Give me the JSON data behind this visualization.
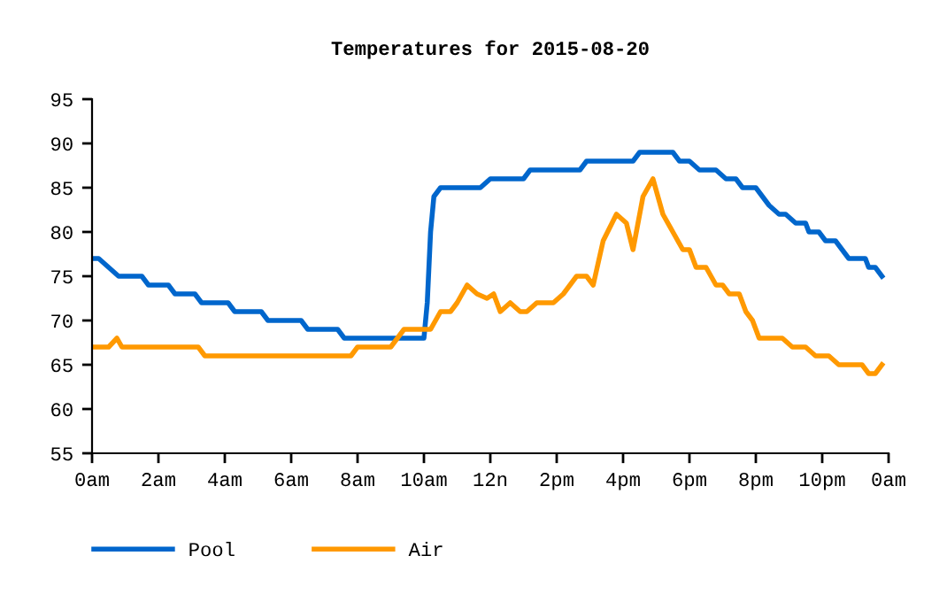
{
  "chart_data": {
    "type": "line",
    "title": "Temperatures for 2015-08-20",
    "xlim": [
      "2015-08-20T00:00",
      "2015-08-21T00:00"
    ],
    "ylim": [
      55,
      95
    ],
    "xticks": [
      {
        "value": "2015-08-20T00:00",
        "label": "0am"
      },
      {
        "value": "2015-08-20T02:00",
        "label": "2am"
      },
      {
        "value": "2015-08-20T04:00",
        "label": "4am"
      },
      {
        "value": "2015-08-20T06:00",
        "label": "6am"
      },
      {
        "value": "2015-08-20T08:00",
        "label": "8am"
      },
      {
        "value": "2015-08-20T10:00",
        "label": "10am"
      },
      {
        "value": "2015-08-20T12:00",
        "label": "12n"
      },
      {
        "value": "2015-08-20T14:00",
        "label": "2pm"
      },
      {
        "value": "2015-08-20T16:00",
        "label": "4pm"
      },
      {
        "value": "2015-08-20T18:00",
        "label": "6pm"
      },
      {
        "value": "2015-08-20T20:00",
        "label": "8pm"
      },
      {
        "value": "2015-08-20T22:00",
        "label": "10pm"
      },
      {
        "value": "2015-08-21T00:00",
        "label": "0am"
      }
    ],
    "yticks": [
      55,
      60,
      65,
      70,
      75,
      80,
      85,
      90,
      95
    ],
    "grid": false,
    "legend": "bottom",
    "marker": "none",
    "line_style": "solid",
    "series": [
      {
        "name": "Pool",
        "color": "#0066cc",
        "x": [
          "2015-08-20T00:00",
          "2015-08-20T00:12",
          "2015-08-20T00:30",
          "2015-08-20T00:48",
          "2015-08-20T01:30",
          "2015-08-20T01:42",
          "2015-08-20T02:18",
          "2015-08-20T02:30",
          "2015-08-20T03:06",
          "2015-08-20T03:18",
          "2015-08-20T04:06",
          "2015-08-20T04:18",
          "2015-08-20T05:06",
          "2015-08-20T05:18",
          "2015-08-20T06:18",
          "2015-08-20T06:30",
          "2015-08-20T07:24",
          "2015-08-20T07:36",
          "2015-08-20T10:00",
          "2015-08-20T10:06",
          "2015-08-20T10:12",
          "2015-08-20T10:18",
          "2015-08-20T10:30",
          "2015-08-20T11:42",
          "2015-08-20T12:00",
          "2015-08-20T13:00",
          "2015-08-20T13:12",
          "2015-08-20T14:42",
          "2015-08-20T14:54",
          "2015-08-20T16:18",
          "2015-08-20T16:30",
          "2015-08-20T17:30",
          "2015-08-20T17:42",
          "2015-08-20T18:00",
          "2015-08-20T18:18",
          "2015-08-20T18:48",
          "2015-08-20T19:06",
          "2015-08-20T19:24",
          "2015-08-20T19:36",
          "2015-08-20T20:00",
          "2015-08-20T20:12",
          "2015-08-20T20:24",
          "2015-08-20T20:42",
          "2015-08-20T20:54",
          "2015-08-20T21:12",
          "2015-08-20T21:30",
          "2015-08-20T21:36",
          "2015-08-20T21:54",
          "2015-08-20T22:06",
          "2015-08-20T22:24",
          "2015-08-20T22:36",
          "2015-08-20T22:48",
          "2015-08-20T23:18",
          "2015-08-20T23:24",
          "2015-08-20T23:36",
          "2015-08-20T23:48"
        ],
        "values": [
          77,
          77,
          76,
          75,
          75,
          74,
          74,
          73,
          73,
          72,
          72,
          71,
          71,
          70,
          70,
          69,
          69,
          68,
          68,
          72,
          80,
          84,
          85,
          85,
          86,
          86,
          87,
          87,
          88,
          88,
          89,
          89,
          88,
          88,
          87,
          87,
          86,
          86,
          85,
          85,
          84,
          83,
          82,
          82,
          81,
          81,
          80,
          80,
          79,
          79,
          78,
          77,
          77,
          76,
          76,
          75
        ]
      },
      {
        "name": "Air",
        "color": "#ff9900",
        "x": [
          "2015-08-20T00:00",
          "2015-08-20T00:30",
          "2015-08-20T00:45",
          "2015-08-20T00:54",
          "2015-08-20T03:12",
          "2015-08-20T03:24",
          "2015-08-20T07:48",
          "2015-08-20T08:00",
          "2015-08-20T09:00",
          "2015-08-20T09:12",
          "2015-08-20T09:24",
          "2015-08-20T10:12",
          "2015-08-20T10:30",
          "2015-08-20T10:48",
          "2015-08-20T11:00",
          "2015-08-20T11:18",
          "2015-08-20T11:36",
          "2015-08-20T11:54",
          "2015-08-20T12:06",
          "2015-08-20T12:18",
          "2015-08-20T12:36",
          "2015-08-20T12:54",
          "2015-08-20T13:06",
          "2015-08-20T13:24",
          "2015-08-20T13:54",
          "2015-08-20T14:12",
          "2015-08-20T14:36",
          "2015-08-20T14:54",
          "2015-08-20T15:06",
          "2015-08-20T15:24",
          "2015-08-20T15:48",
          "2015-08-20T16:06",
          "2015-08-20T16:18",
          "2015-08-20T16:36",
          "2015-08-20T16:54",
          "2015-08-20T17:12",
          "2015-08-20T17:30",
          "2015-08-20T17:48",
          "2015-08-20T18:00",
          "2015-08-20T18:12",
          "2015-08-20T18:30",
          "2015-08-20T18:48",
          "2015-08-20T19:00",
          "2015-08-20T19:12",
          "2015-08-20T19:30",
          "2015-08-20T19:42",
          "2015-08-20T19:54",
          "2015-08-20T20:06",
          "2015-08-20T20:48",
          "2015-08-20T21:06",
          "2015-08-20T21:30",
          "2015-08-20T21:48",
          "2015-08-20T22:12",
          "2015-08-20T22:30",
          "2015-08-20T23:12",
          "2015-08-20T23:24",
          "2015-08-20T23:36",
          "2015-08-20T23:48"
        ],
        "values": [
          67,
          67,
          68,
          67,
          67,
          66,
          66,
          67,
          67,
          68,
          69,
          69,
          71,
          71,
          72,
          74,
          73,
          72.5,
          73,
          71,
          72,
          71,
          71,
          72,
          72,
          73,
          75,
          75,
          74,
          79,
          82,
          81,
          78,
          84,
          86,
          82,
          80,
          78,
          78,
          76,
          76,
          74,
          74,
          73,
          73,
          71,
          70,
          68,
          68,
          67,
          67,
          66,
          66,
          65,
          65,
          64,
          64,
          65
        ]
      }
    ]
  }
}
